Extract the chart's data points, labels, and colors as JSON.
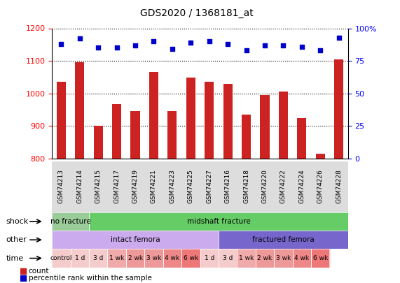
{
  "title": "GDS2020 / 1368181_at",
  "samples": [
    "GSM74213",
    "GSM74214",
    "GSM74215",
    "GSM74217",
    "GSM74219",
    "GSM74221",
    "GSM74223",
    "GSM74225",
    "GSM74227",
    "GSM74216",
    "GSM74218",
    "GSM74220",
    "GSM74222",
    "GSM74224",
    "GSM74226",
    "GSM74228"
  ],
  "counts": [
    1035,
    1095,
    900,
    968,
    945,
    1065,
    945,
    1048,
    1035,
    1030,
    935,
    995,
    1005,
    925,
    815,
    1105
  ],
  "percentile_ranks": [
    88,
    92,
    85,
    85,
    87,
    90,
    84,
    89,
    90,
    88,
    83,
    87,
    87,
    86,
    83,
    93
  ],
  "ylim_left": [
    800,
    1200
  ],
  "ylim_right": [
    0,
    100
  ],
  "yticks_left": [
    800,
    900,
    1000,
    1100,
    1200
  ],
  "yticks_right": [
    0,
    25,
    50,
    75,
    100
  ],
  "bar_color": "#cc2222",
  "dot_color": "#0000cc",
  "background_color": "#ffffff",
  "plot_bg_color": "#ffffff",
  "shock_row": {
    "label": "shock",
    "groups": [
      {
        "text": "no fracture",
        "span": [
          0,
          2
        ],
        "color": "#99cc99"
      },
      {
        "text": "midshaft fracture",
        "span": [
          2,
          16
        ],
        "color": "#66cc66"
      }
    ]
  },
  "other_row": {
    "label": "other",
    "groups": [
      {
        "text": "intact femora",
        "span": [
          0,
          9
        ],
        "color": "#ccaaee"
      },
      {
        "text": "fractured femora",
        "span": [
          9,
          16
        ],
        "color": "#7766cc"
      }
    ]
  },
  "time_row": {
    "label": "time",
    "cells": [
      {
        "text": "control",
        "span": [
          0,
          1
        ],
        "color": "#f5cccc"
      },
      {
        "text": "1 d",
        "span": [
          1,
          2
        ],
        "color": "#f5cccc"
      },
      {
        "text": "3 d",
        "span": [
          2,
          3
        ],
        "color": "#f5cccc"
      },
      {
        "text": "1 wk",
        "span": [
          3,
          4
        ],
        "color": "#f0aaaa"
      },
      {
        "text": "2 wk",
        "span": [
          4,
          5
        ],
        "color": "#ee9999"
      },
      {
        "text": "3 wk",
        "span": [
          5,
          6
        ],
        "color": "#ee9999"
      },
      {
        "text": "4 wk",
        "span": [
          6,
          7
        ],
        "color": "#ee8888"
      },
      {
        "text": "6 wk",
        "span": [
          7,
          8
        ],
        "color": "#ee7777"
      },
      {
        "text": "1 d",
        "span": [
          8,
          9
        ],
        "color": "#f5cccc"
      },
      {
        "text": "3 d",
        "span": [
          9,
          10
        ],
        "color": "#f5cccc"
      },
      {
        "text": "1 wk",
        "span": [
          10,
          11
        ],
        "color": "#f0aaaa"
      },
      {
        "text": "2 wk",
        "span": [
          11,
          12
        ],
        "color": "#ee9999"
      },
      {
        "text": "3 wk",
        "span": [
          12,
          13
        ],
        "color": "#ee9999"
      },
      {
        "text": "4 wk",
        "span": [
          13,
          14
        ],
        "color": "#ee8888"
      },
      {
        "text": "6 wk",
        "span": [
          14,
          15
        ],
        "color": "#ee7777"
      }
    ]
  },
  "legend_items": [
    {
      "label": "count",
      "color": "#cc2222",
      "marker": "s"
    },
    {
      "label": "percentile rank within the sample",
      "color": "#0000cc",
      "marker": "s"
    }
  ]
}
